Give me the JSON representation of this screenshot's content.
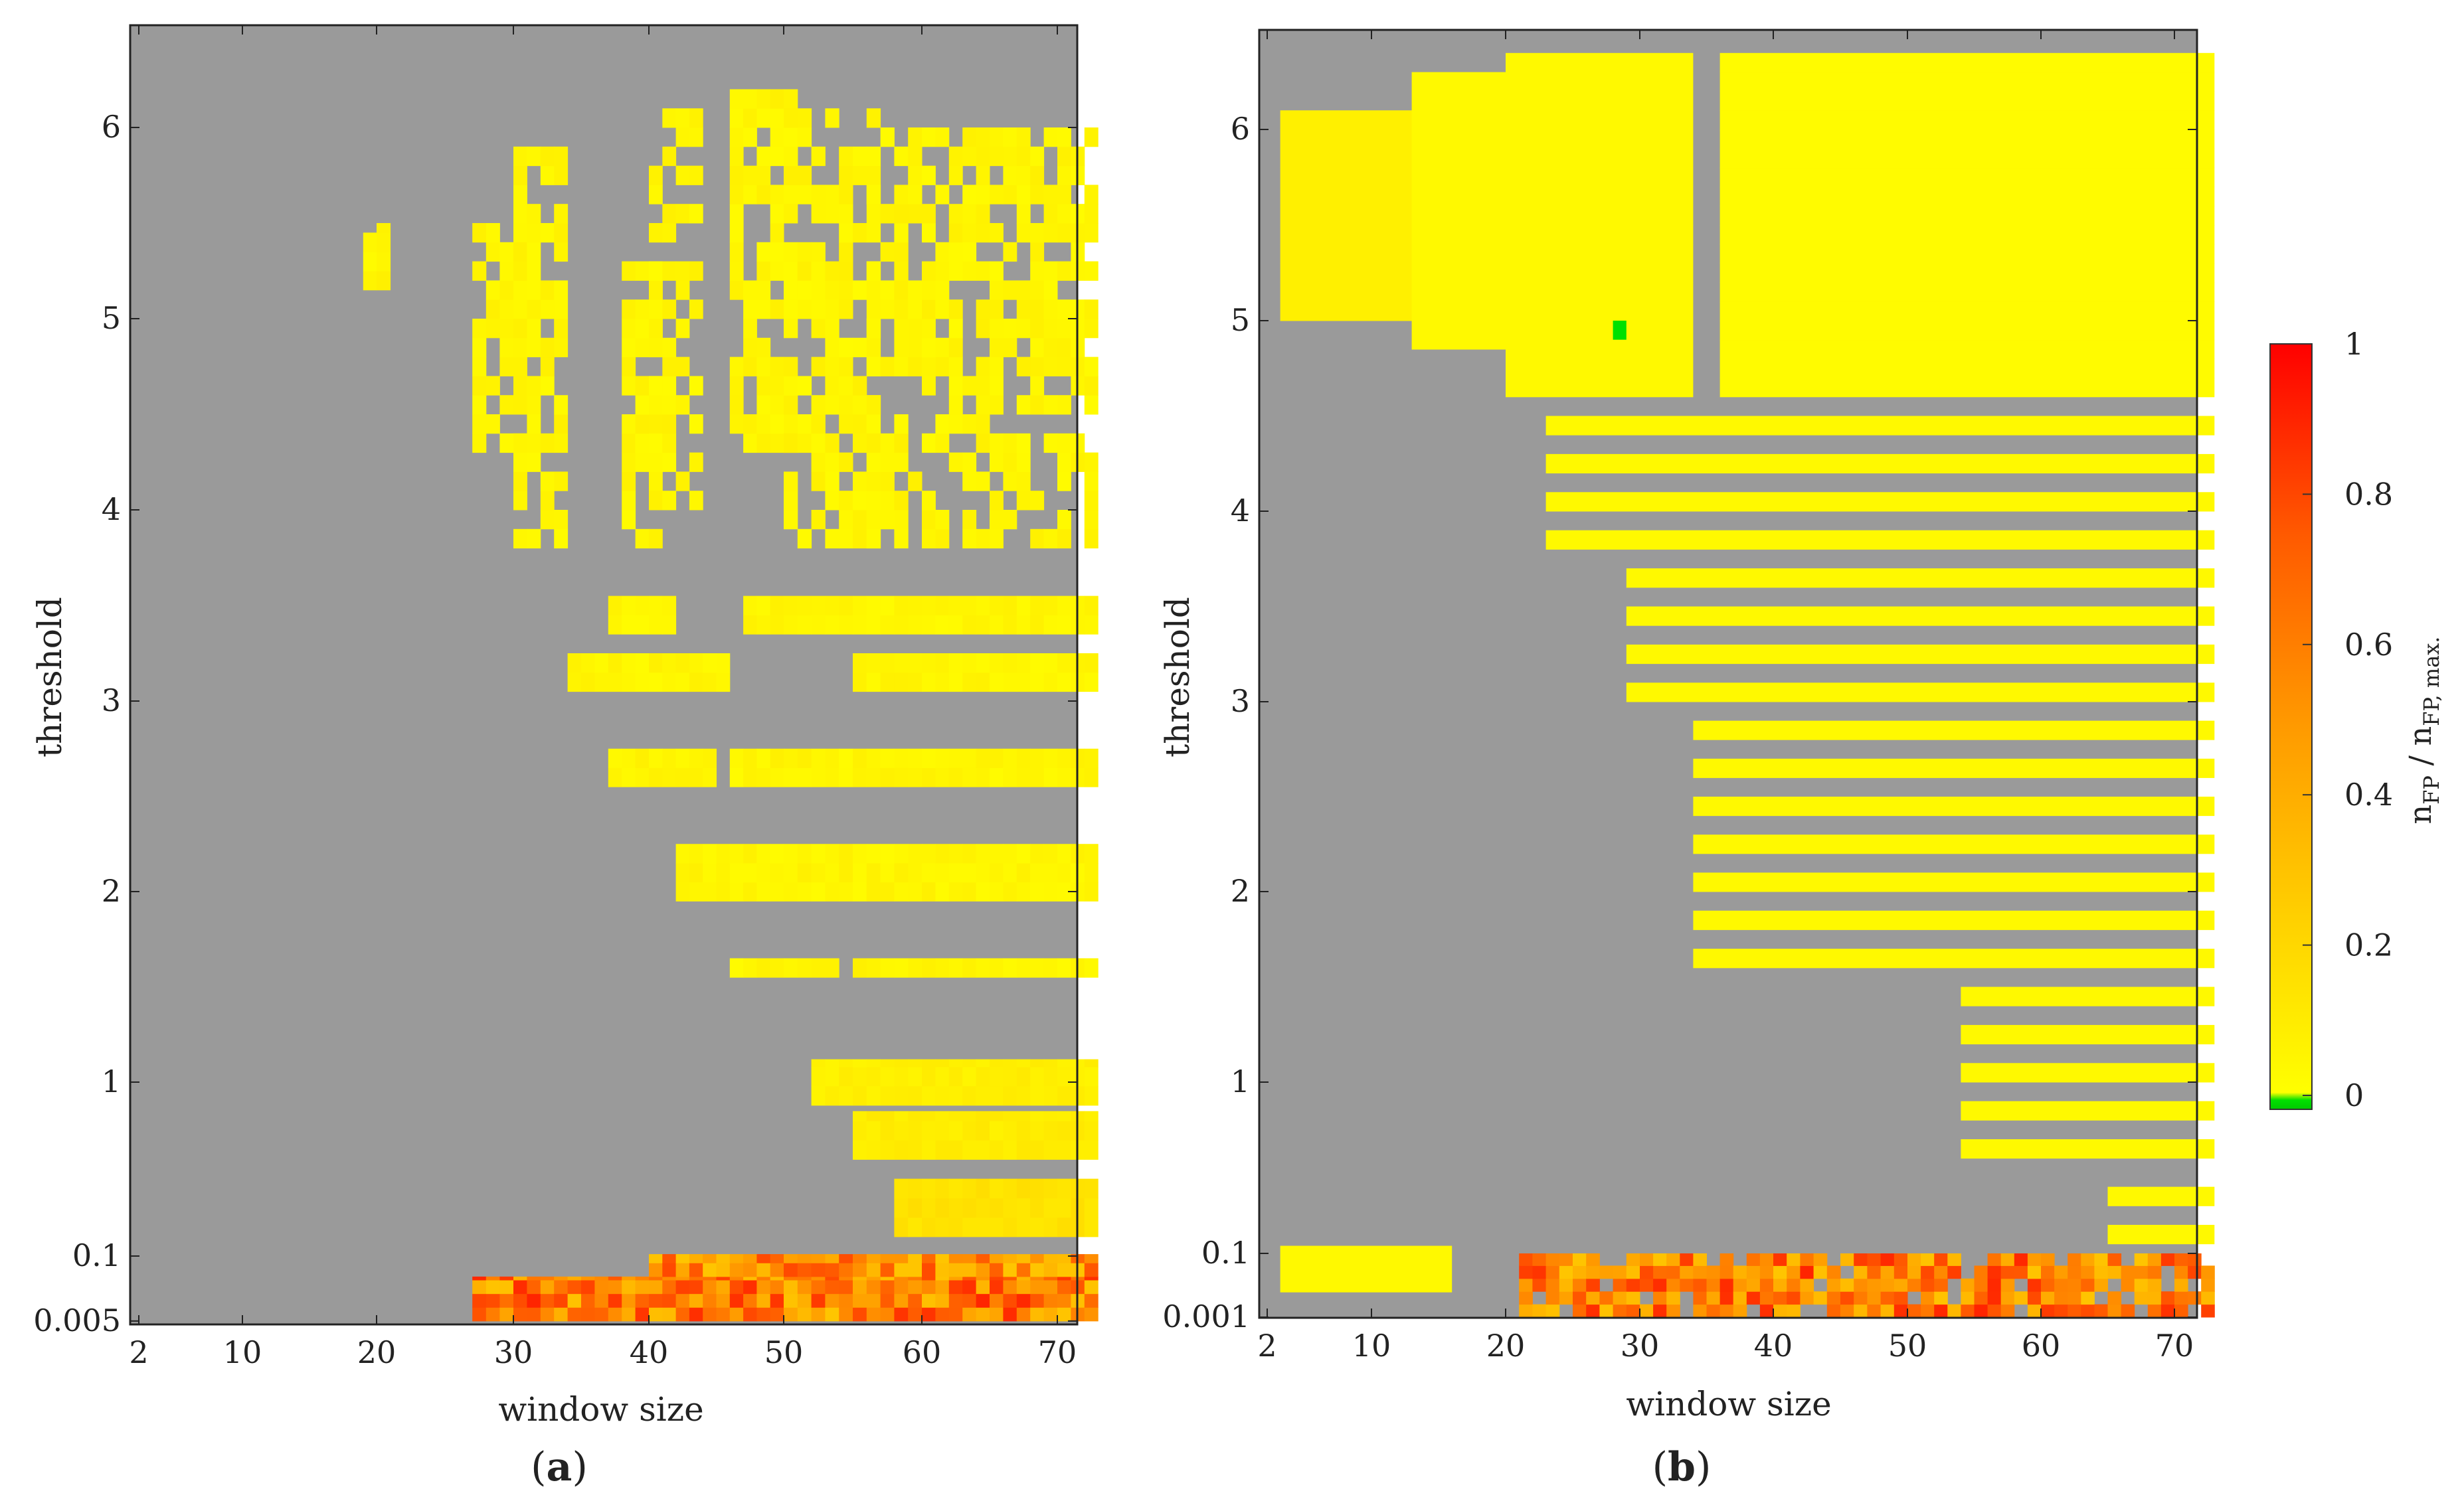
{
  "colors": {
    "background_no_fp": "#9a9a9a",
    "colormap_stops": [
      "#00e000",
      "#ffff00",
      "#ffc800",
      "#ff9800",
      "#ff5a00",
      "#ff0000"
    ]
  },
  "chart_data": [
    {
      "type": "heatmap",
      "panel_label": "(a)",
      "panel_letter": "a",
      "xlabel": "window size",
      "ylabel": "threshold",
      "xlim": [
        1,
        72
      ],
      "x_ticks": [
        2,
        10,
        20,
        30,
        40,
        50,
        60,
        70
      ],
      "y_ticks": [
        {
          "value": 0.005,
          "label": "0.005"
        },
        {
          "value": 0.1,
          "label": "0.1"
        },
        {
          "value": 1,
          "label": "1"
        },
        {
          "value": 2,
          "label": "2"
        },
        {
          "value": 3,
          "label": "3"
        },
        {
          "value": 4,
          "label": "4"
        },
        {
          "value": 5,
          "label": "5"
        },
        {
          "value": 6,
          "label": "6"
        }
      ],
      "background": "no false positives (gray)",
      "cells_approx": [
        {
          "x": [
            19,
            20
          ],
          "y": [
            5.05,
            5.5
          ],
          "value": 0.05
        },
        {
          "x": [
            27,
            30
          ],
          "y": [
            4.3,
            5.5
          ],
          "value": 0.05
        },
        {
          "x": [
            30,
            33
          ],
          "y": [
            3.8,
            5.9
          ],
          "value": 0.05
        },
        {
          "x": [
            38,
            40
          ],
          "y": [
            3.8,
            5.3
          ],
          "value": 0.05
        },
        {
          "x": [
            40,
            43
          ],
          "y": [
            4.0,
            6.1
          ],
          "value": 0.05
        },
        {
          "x": [
            46,
            50
          ],
          "y": [
            4.3,
            6.2
          ],
          "value": 0.05
        },
        {
          "x": [
            50,
            56
          ],
          "y": [
            3.8,
            6.1
          ],
          "value": 0.05
        },
        {
          "x": [
            56,
            72
          ],
          "y": [
            3.8,
            6.0
          ],
          "value": 0.05
        },
        {
          "x": [
            37,
            41
          ],
          "y": [
            3.35,
            3.55
          ],
          "value": 0.05
        },
        {
          "x": [
            47,
            72
          ],
          "y": [
            3.35,
            3.55
          ],
          "value": 0.05
        },
        {
          "x": [
            34,
            45
          ],
          "y": [
            3.05,
            3.25
          ],
          "value": 0.05
        },
        {
          "x": [
            55,
            72
          ],
          "y": [
            3.05,
            3.25
          ],
          "value": 0.05
        },
        {
          "x": [
            37,
            44
          ],
          "y": [
            2.55,
            2.75
          ],
          "value": 0.05
        },
        {
          "x": [
            46,
            72
          ],
          "y": [
            2.55,
            2.75
          ],
          "value": 0.05
        },
        {
          "x": [
            42,
            72
          ],
          "y": [
            1.95,
            2.25
          ],
          "value": 0.05
        },
        {
          "x": [
            46,
            53
          ],
          "y": [
            1.55,
            1.65
          ],
          "value": 0.05
        },
        {
          "x": [
            55,
            72
          ],
          "y": [
            1.55,
            1.65
          ],
          "value": 0.05
        },
        {
          "x": [
            52,
            72
          ],
          "y": [
            0.88,
            1.12
          ],
          "value": 0.08
        },
        {
          "x": [
            55,
            72
          ],
          "y": [
            0.6,
            0.85
          ],
          "value": 0.1
        },
        {
          "x": [
            58,
            72
          ],
          "y": [
            0.2,
            0.5
          ],
          "value": 0.15
        },
        {
          "x": [
            27,
            72
          ],
          "y": [
            0.005,
            0.07
          ],
          "value": 0.6
        },
        {
          "x": [
            40,
            72
          ],
          "y": [
            0.07,
            0.11
          ],
          "value": 0.5
        }
      ]
    },
    {
      "type": "heatmap",
      "panel_label": "(b)",
      "panel_letter": "b",
      "xlabel": "window size",
      "ylabel": "threshold",
      "xlim": [
        1,
        72
      ],
      "x_ticks": [
        2,
        10,
        20,
        30,
        40,
        50,
        60,
        70
      ],
      "y_ticks": [
        {
          "value": 0.001,
          "label": "0.001"
        },
        {
          "value": 0.1,
          "label": "0.1"
        },
        {
          "value": 1,
          "label": "1"
        },
        {
          "value": 2,
          "label": "2"
        },
        {
          "value": 3,
          "label": "3"
        },
        {
          "value": 4,
          "label": "4"
        },
        {
          "value": 5,
          "label": "5"
        },
        {
          "value": 6,
          "label": "6"
        }
      ],
      "background": "no false positives (gray)",
      "cells_approx": [
        {
          "x": [
            3,
            13
          ],
          "y": [
            5.0,
            6.1
          ],
          "value": 0.08
        },
        {
          "x": [
            13,
            20
          ],
          "y": [
            4.85,
            6.3
          ],
          "value": 0.03
        },
        {
          "x": [
            20,
            33
          ],
          "y": [
            4.6,
            6.4
          ],
          "value": 0.03
        },
        {
          "x": [
            36,
            72
          ],
          "y": [
            4.6,
            6.4
          ],
          "value": 0.02
        },
        {
          "x": [
            23,
            72
          ],
          "y": [
            3.8,
            4.5
          ],
          "value": 0.03
        },
        {
          "x": [
            29,
            72
          ],
          "y": [
            2.9,
            3.8
          ],
          "value": 0.03
        },
        {
          "x": [
            34,
            72
          ],
          "y": [
            1.5,
            2.9
          ],
          "value": 0.03
        },
        {
          "x": [
            54,
            72
          ],
          "y": [
            0.6,
            1.5
          ],
          "value": 0.03
        },
        {
          "x": [
            65,
            72
          ],
          "y": [
            0.15,
            0.6
          ],
          "value": 0.03
        },
        {
          "x": [
            28,
            28
          ],
          "y": [
            4.95,
            4.95
          ],
          "value": 0.0
        },
        {
          "x": [
            3,
            15
          ],
          "y": [
            0.04,
            0.18
          ],
          "value": 0.03
        },
        {
          "x": [
            21,
            72
          ],
          "y": [
            0.001,
            0.1
          ],
          "value": 0.6
        }
      ]
    }
  ],
  "colorbar": {
    "label_main": "n",
    "label_sub_num": "FP",
    "label_div": " / n",
    "label_sub_den": "FP, max.",
    "ticks": [
      {
        "value": 0,
        "label": "0"
      },
      {
        "value": 0.2,
        "label": "0.2"
      },
      {
        "value": 0.4,
        "label": "0.4"
      },
      {
        "value": 0.6,
        "label": "0.6"
      },
      {
        "value": 0.8,
        "label": "0.8"
      },
      {
        "value": 1,
        "label": "1"
      }
    ]
  }
}
